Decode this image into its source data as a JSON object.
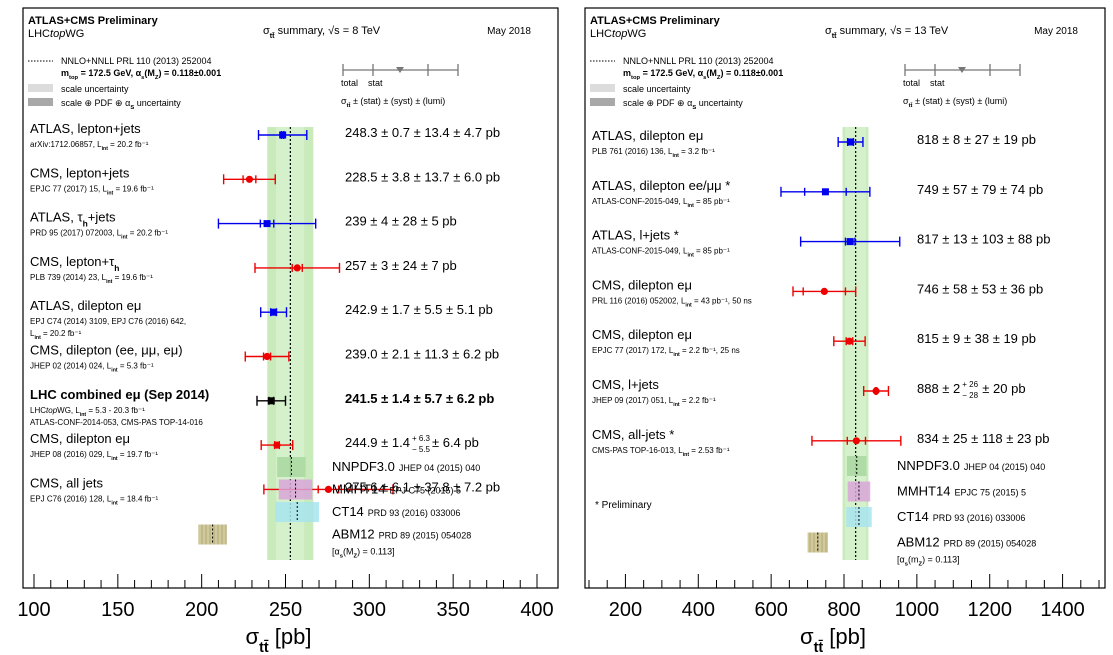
{
  "colors": {
    "theory_band": "#bfe8b0",
    "theory_band_inner": "#d6f2cc",
    "nnpdf": "#a8d8a0",
    "mmht": "#d9a6d9",
    "ct14": "#a8e4ee",
    "abm": "#c8c08a",
    "atlas": "#0000ee",
    "cms": "#ee0000",
    "combo": "#000000"
  },
  "chart_data": [
    {
      "type": "forest",
      "header": {
        "title": "ATLAS+CMS Preliminary",
        "group": "LHC",
        "group_italic": "top",
        "group_suffix": "WG",
        "summary": "σ",
        "summary_sub": "tt̄",
        "summary_rest": " summary, √s = 8 TeV",
        "date": "May 2018"
      },
      "legend": {
        "theory_line1": "NNLO+NNLL  PRL 110 (2013) 252004",
        "theory_line2": "m",
        "theory_line2_sub": "top",
        "theory_line2_rest": " = 172.5 GeV, α",
        "theory_line2_sub2": "s",
        "theory_line2_rest2": "(M",
        "theory_line2_sub3": "Z",
        "theory_line2_rest3": ") = 0.118±0.001",
        "scale": "scale uncertainty",
        "pdf": "scale ⊕ PDF ⊕ α",
        "pdf_sub": "S",
        "pdf_rest": " uncertainty",
        "key_total": "total",
        "key_stat": "stat",
        "key_formula": "σ",
        "key_formula_sub": "tt̄",
        "key_formula_rest": " ± (stat) ± (syst) ± (lumi)"
      },
      "theory": {
        "central": 252.9,
        "scale": [
          244.4,
          261.2
        ],
        "pdf": [
          239.1,
          266.6
        ]
      },
      "xlim": [
        100,
        400
      ],
      "xticks": [
        100,
        150,
        200,
        250,
        300,
        350,
        400
      ],
      "xticklabels": [
        "100",
        "150",
        "200",
        "250",
        "300",
        "350",
        "400"
      ],
      "xlabel": "σ",
      "xlabel_sub": "tt̄",
      "xlabel_rest": " [pb]",
      "measurements": [
        {
          "label": "ATLAS, lepton+jets",
          "ref": "arXiv:1712.06857,  L",
          "ref_sub": "int",
          "ref_rest": " = 20.2 fb⁻¹",
          "value": 248.3,
          "stat": 0.7,
          "total": 14.4,
          "exp": "atlas",
          "result": "248.3 ± 0.7 ± 13.4 ± 4.7 pb"
        },
        {
          "label": "CMS, lepton+jets",
          "ref": "EPJC 77 (2017) 15, L",
          "ref_sub": "int",
          "ref_rest": " = 19.6 fb⁻¹",
          "value": 228.5,
          "stat": 3.8,
          "total": 15.4,
          "exp": "cms",
          "result": "228.5 ± 3.8 ± 13.7 ± 6.0 pb"
        },
        {
          "label": "ATLAS, τ",
          "label_sub": "h",
          "label_rest": "+jets",
          "ref": "PRD 95 (2017) 072003, L",
          "ref_sub": "int",
          "ref_rest": " = 20.2 fb⁻¹",
          "value": 239,
          "stat": 4,
          "total": 29,
          "exp": "atlas",
          "result": "239 ± 4 ± 28 ± 5 pb"
        },
        {
          "label": "CMS, lepton+τ",
          "label_sub": "h",
          "ref": "PLB 739 (2014) 23, L",
          "ref_sub": "int",
          "ref_rest": " = 19.6 fb⁻¹",
          "value": 257,
          "stat": 3,
          "total": 25.2,
          "exp": "cms",
          "result": "257 ± 3 ± 24 ± 7 pb"
        },
        {
          "label": "ATLAS, dilepton eμ",
          "ref": "EPJ C74 (2014) 3109, EPJ C76 (2016) 642,",
          "ref2": "L",
          "ref2_sub": "int",
          "ref2_rest": " = 20.2 fb⁻¹",
          "value": 242.9,
          "stat": 1.7,
          "total": 7.7,
          "exp": "atlas",
          "result": "242.9 ± 1.7 ± 5.5 ± 5.1 pb"
        },
        {
          "label": "CMS, dilepton (ee, μμ, eμ)",
          "ref": "JHEP 02 (2014) 024,   L",
          "ref_sub": "int",
          "ref_rest": " = 5.3 fb⁻¹",
          "value": 239.0,
          "stat": 2.1,
          "total": 13.0,
          "exp": "cms",
          "result": "239.0 ± 2.1 ± 11.3 ± 6.2 pb"
        },
        {
          "label": "LHC combined eμ (Sep 2014)",
          "bold": true,
          "ref": "LHC",
          "ref_italic": "top",
          "ref_after": "WG, L",
          "ref_sub": "int",
          "ref_rest": " = 5.3 - 20.3 fb⁻¹",
          "ref2": "ATLAS-CONF-2014-053, CMS-PAS TOP-14-016",
          "value": 241.5,
          "stat": 1.4,
          "total": 8.5,
          "exp": "combo",
          "result": "241.5 ± 1.4 ± 5.7 ± 6.2 pb"
        },
        {
          "label": "CMS, dilepton eμ",
          "ref": "JHEP 08 (2016) 029,    L",
          "ref_sub": "int",
          "ref_rest": " = 19.7 fb⁻¹",
          "value": 244.9,
          "stat": 1.4,
          "total": 9.4,
          "exp": "cms",
          "result_a": "244.9 ± 1.4 ",
          "result_up": "+ 6.3",
          "result_dn": "− 5.5",
          "result_b": " ± 6.4 pb"
        },
        {
          "label": "CMS, all jets",
          "ref": "EPJ C76 (2016) 128,     L",
          "ref_sub": "int",
          "ref_rest": " = 18.4 fb⁻¹",
          "value": 275.6,
          "stat": 6.1,
          "total": 38.5,
          "exp": "cms",
          "result": "275.6 ± 6.1 ± 37.8 ± 7.2 pb"
        }
      ],
      "pdfs": [
        {
          "name": "NNPDF3.0",
          "ref": "JHEP 04 (2015) 040",
          "lo": 245,
          "hi": 262,
          "key": "nnpdf",
          "hatch": false
        },
        {
          "name": "MMHT14",
          "ref": "EPJ C75 (2015) 5",
          "lo": 246,
          "hi": 266,
          "key": "mmht",
          "hatch": false
        },
        {
          "name": "CT14",
          "ref": "PRD 93 (2016) 033006",
          "lo": 244,
          "hi": 270,
          "key": "ct14",
          "hatch": false
        },
        {
          "name": "ABM12",
          "ref": "PRD 89 (2015) 054028",
          "ref2": "[α",
          "ref2_sub": "s",
          "ref2_rest": "(M",
          "ref2_sub2": "Z",
          "ref2_rest2": ") = 0.113]",
          "lo": 198,
          "hi": 215,
          "key": "abm",
          "hatch": true
        }
      ],
      "note": ""
    },
    {
      "type": "forest",
      "header": {
        "title": "ATLAS+CMS Preliminary",
        "group": "LHC",
        "group_italic": "top",
        "group_suffix": "WG",
        "summary": "σ",
        "summary_sub": "tt̄",
        "summary_rest": " summary, √s = 13 TeV",
        "date": "May 2018"
      },
      "legend": {
        "theory_line1": "NNLO+NNLL  PRL 110 (2013) 252004",
        "theory_line2": "m",
        "theory_line2_sub": "top",
        "theory_line2_rest": " = 172.5 GeV, α",
        "theory_line2_sub2": "s",
        "theory_line2_rest2": "(M",
        "theory_line2_sub3": "Z",
        "theory_line2_rest3": ") = 0.118±0.001",
        "scale": "scale uncertainty",
        "pdf": "scale ⊕ PDF ⊕ α",
        "pdf_sub": "S",
        "pdf_rest": " uncertainty",
        "key_total": "total",
        "key_stat": "stat",
        "key_formula": "σ",
        "key_formula_sub": "tt̄",
        "key_formula_rest": " ± (stat) ± (syst) ± (lumi)"
      },
      "theory": {
        "central": 832,
        "scale": [
          803,
          861
        ],
        "pdf": [
          796,
          867
        ]
      },
      "xlim": [
        100,
        1500
      ],
      "xticks": [
        200,
        400,
        600,
        800,
        1000,
        1200,
        1400
      ],
      "xticklabels": [
        "200",
        "400",
        "600",
        "800",
        "1000",
        "1200",
        "1400"
      ],
      "xlabel": "σ",
      "xlabel_sub": "tt̄",
      "xlabel_rest": " [pb]",
      "measurements": [
        {
          "label": "ATLAS, dilepton eμ",
          "ref": "PLB 761 (2016) 136,  L",
          "ref_sub": "int",
          "ref_rest": " = 3.2 fb⁻¹",
          "value": 818,
          "stat": 8,
          "total": 34,
          "exp": "atlas",
          "result": "818 ± 8 ± 27 ± 19 pb"
        },
        {
          "label": "ATLAS, dilepton ee/μμ *",
          "ref": "ATLAS-CONF-2015-049,  L",
          "ref_sub": "int",
          "ref_rest": " = 85 pb⁻¹",
          "value": 749,
          "stat": 57,
          "total": 122,
          "exp": "atlas",
          "result": "749 ± 57 ± 79 ± 74 pb"
        },
        {
          "label": "ATLAS, l+jets *",
          "ref": "ATLAS-CONF-2015-049,  L",
          "ref_sub": "int",
          "ref_rest": " = 85 pb⁻¹",
          "value": 817,
          "stat": 13,
          "total": 136,
          "exp": "atlas",
          "result": "817 ± 13 ± 103 ± 88 pb"
        },
        {
          "label": "CMS, dilepton eμ",
          "ref": "PRL 116 (2016) 052002,  L",
          "ref_sub": "int",
          "ref_rest": " = 43 pb⁻¹, 50 ns",
          "value": 746,
          "stat": 58,
          "total": 86,
          "exp": "cms",
          "result": "746 ± 58 ± 53 ± 36 pb"
        },
        {
          "label": "CMS, dilepton eμ",
          "ref": "EPJC 77 (2017) 172,  L",
          "ref_sub": "int",
          "ref_rest": " = 2.2 fb⁻¹, 25 ns",
          "value": 815,
          "stat": 9,
          "total": 43,
          "exp": "cms",
          "result": "815 ±  9 ± 38 ± 19 pb"
        },
        {
          "label": "CMS, l+jets",
          "ref": "JHEP 09 (2017) 051,  L",
          "ref_sub": "int",
          "ref_rest": " = 2.2 fb⁻¹",
          "value": 888,
          "stat": 2,
          "total": 34,
          "exp": "cms",
          "result_a": "888 ±  2 ",
          "result_up": "+ 26",
          "result_dn": "− 28",
          "result_b": " ± 20 pb"
        },
        {
          "label": "CMS, all-jets *",
          "ref": "CMS-PAS TOP-16-013,  L",
          "ref_sub": "int",
          "ref_rest": " = 2.53 fb⁻¹",
          "value": 834,
          "stat": 25,
          "total": 122,
          "exp": "cms",
          "result": "834 ± 25 ± 118 ± 23 pb"
        }
      ],
      "pdfs": [
        {
          "name": "NNPDF3.0",
          "ref": "JHEP 04 (2015) 040",
          "lo": 808,
          "hi": 862,
          "key": "nnpdf",
          "hatch": false
        },
        {
          "name": "MMHT14",
          "ref": "EPJC 75 (2015) 5",
          "lo": 810,
          "hi": 872,
          "key": "mmht",
          "hatch": false
        },
        {
          "name": "CT14",
          "ref": "PRD 93 (2016) 033006",
          "lo": 806,
          "hi": 876,
          "key": "ct14",
          "hatch": false
        },
        {
          "name": "ABM12",
          "ref": "PRD 89 (2015) 054028",
          "ref2": "[α",
          "ref2_sub": "s",
          "ref2_rest": "(m",
          "ref2_sub2": "Z",
          "ref2_rest2": ") = 0.113]",
          "lo": 700,
          "hi": 756,
          "key": "abm",
          "hatch": true
        }
      ],
      "note": "* Preliminary"
    }
  ]
}
